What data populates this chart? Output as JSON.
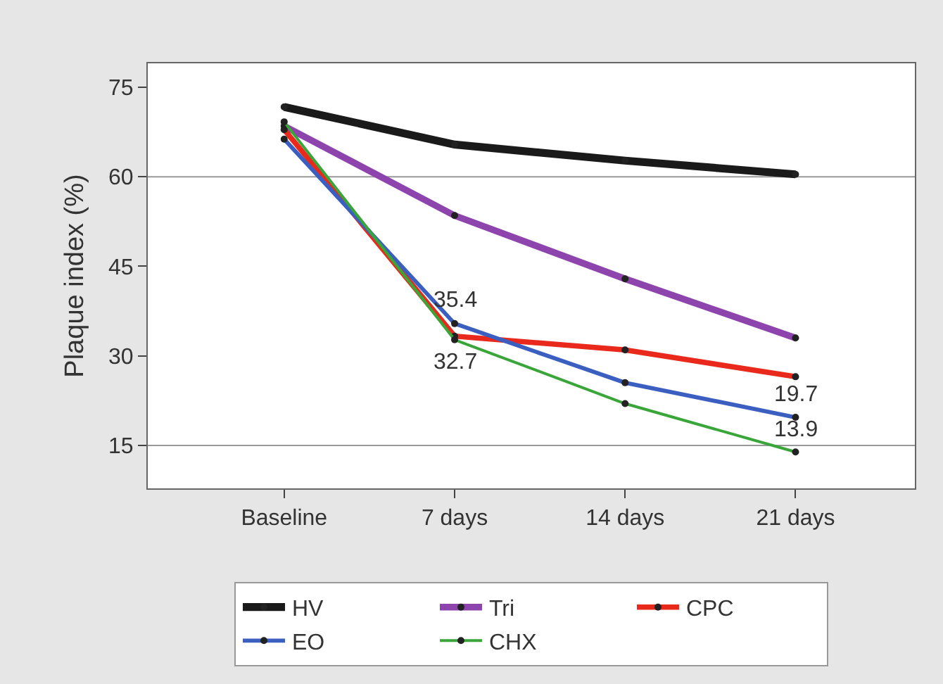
{
  "chart_data": {
    "type": "line",
    "ylabel": "Plaque index (%)",
    "categories": [
      "Baseline",
      "7 days",
      "14 days",
      "21 days"
    ],
    "series": [
      {
        "name": "HV",
        "color": "#1a1a1a",
        "values": [
          71.7,
          65.4,
          62.7,
          60.4
        ]
      },
      {
        "name": "Tri",
        "color": "#8e44ad",
        "values": [
          68.5,
          53.5,
          42.9,
          33.0
        ]
      },
      {
        "name": "CPC",
        "color": "#e8291c",
        "values": [
          67.9,
          33.3,
          31.0,
          26.5
        ]
      },
      {
        "name": "EO",
        "color": "#3b5fc0",
        "values": [
          66.3,
          35.4,
          25.5,
          19.7
        ]
      },
      {
        "name": "CHX",
        "color": "#3aa63a",
        "values": [
          69.2,
          32.7,
          22.0,
          13.9
        ]
      }
    ],
    "ylim": [
      7.8,
      79
    ],
    "yticks": [
      15,
      30,
      45,
      60,
      75
    ],
    "grid": false,
    "marker": "circle",
    "line_style": "solid",
    "legend": "bottom",
    "ref_lines": [
      {
        "axis": "y",
        "value": 60,
        "color": "#999999"
      },
      {
        "axis": "y",
        "value": 15,
        "color": "#999999"
      }
    ],
    "annotations": [
      {
        "text": "35.4",
        "x": "7 days",
        "y": 35.4
      },
      {
        "text": "32.7",
        "x": "7 days",
        "y": 32.7
      },
      {
        "text": "19.7",
        "x": "21 days",
        "y": 19.7
      },
      {
        "text": "13.9",
        "x": "21 days",
        "y": 13.9
      }
    ]
  }
}
